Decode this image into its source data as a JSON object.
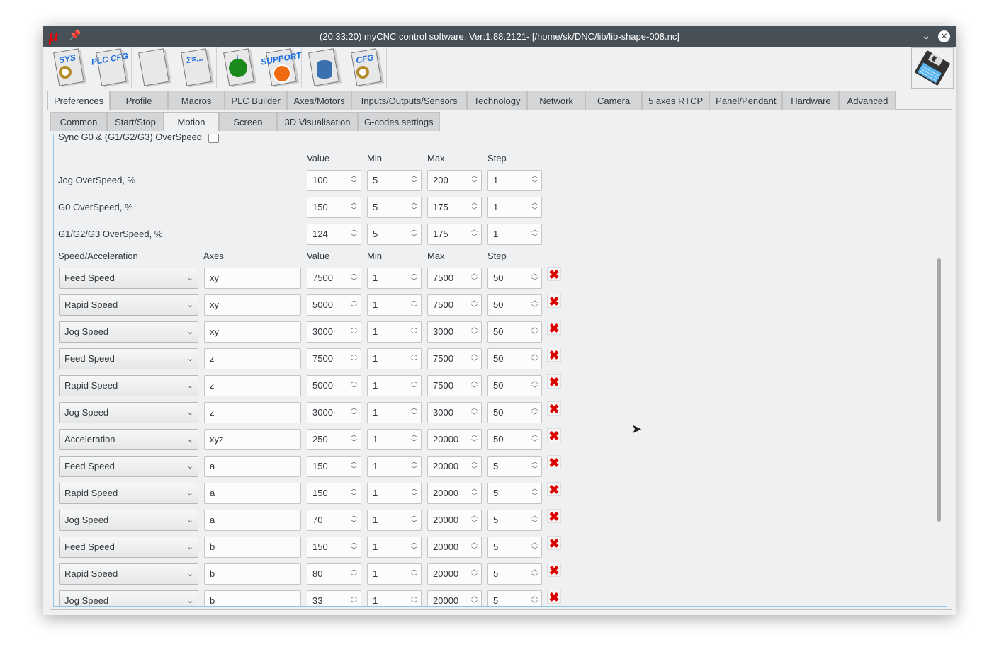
{
  "window": {
    "title": "(20:33:20) myCNC control software. Ver:1.88.2121- [/home/sk/DNC/lib/lib-shape-008.nc]",
    "logo": "μ"
  },
  "toolbar": [
    {
      "label": "SYS",
      "icon": "sys-gear-icon"
    },
    {
      "label": "PLC CFG",
      "icon": "plc-cfg-icon"
    },
    {
      "label": "",
      "icon": "text-doc-icon"
    },
    {
      "label": "Σ=...",
      "icon": "table-formula-icon"
    },
    {
      "label": "i",
      "icon": "info-icon"
    },
    {
      "label": "SUPPORT",
      "icon": "support-phone-icon"
    },
    {
      "label": "",
      "icon": "database-icon"
    },
    {
      "label": "CFG",
      "icon": "cfg-gear-icon"
    }
  ],
  "save_icon": "floppy-save-icon",
  "main_tabs": [
    "Preferences",
    "Profile",
    "Macros",
    "PLC Builder",
    "Axes/Motors",
    "Inputs/Outputs/Sensors",
    "Technology",
    "Network",
    "Camera",
    "5 axes RTCP",
    "Panel/Pendant",
    "Hardware",
    "Advanced"
  ],
  "sub_tabs": [
    "Common",
    "Start/Stop",
    "Motion",
    "Screen",
    "3D Visualisation",
    "G-codes settings"
  ],
  "sync_label": "Sync G0 & (G1/G2/G3) OverSpeed",
  "headers": {
    "value": "Value",
    "min": "Min",
    "max": "Max",
    "step": "Step",
    "speed": "Speed/Acceleration",
    "axes": "Axes"
  },
  "overspeed": [
    {
      "label": "Jog OverSpeed, %",
      "value": "100",
      "min": "5",
      "max": "200",
      "step": "1"
    },
    {
      "label": "G0 OverSpeed, %",
      "value": "150",
      "min": "5",
      "max": "175",
      "step": "1"
    },
    {
      "label": "G1/G2/G3 OverSpeed, %",
      "value": "124",
      "min": "5",
      "max": "175",
      "step": "1"
    }
  ],
  "speeds": [
    {
      "type": "Feed Speed",
      "axes": "xy",
      "value": "7500",
      "min": "1",
      "max": "7500",
      "step": "50"
    },
    {
      "type": "Rapid Speed",
      "axes": "xy",
      "value": "5000",
      "min": "1",
      "max": "7500",
      "step": "50"
    },
    {
      "type": "Jog Speed",
      "axes": "xy",
      "value": "3000",
      "min": "1",
      "max": "3000",
      "step": "50"
    },
    {
      "type": "Feed Speed",
      "axes": "z",
      "value": "7500",
      "min": "1",
      "max": "7500",
      "step": "50"
    },
    {
      "type": "Rapid Speed",
      "axes": "z",
      "value": "5000",
      "min": "1",
      "max": "7500",
      "step": "50"
    },
    {
      "type": "Jog Speed",
      "axes": "z",
      "value": "3000",
      "min": "1",
      "max": "3000",
      "step": "50"
    },
    {
      "type": "Acceleration",
      "axes": "xyz",
      "value": "250",
      "min": "1",
      "max": "20000",
      "step": "50"
    },
    {
      "type": "Feed Speed",
      "axes": "a",
      "value": "150",
      "min": "1",
      "max": "20000",
      "step": "5"
    },
    {
      "type": "Rapid Speed",
      "axes": "a",
      "value": "150",
      "min": "1",
      "max": "20000",
      "step": "5"
    },
    {
      "type": "Jog Speed",
      "axes": "a",
      "value": "70",
      "min": "1",
      "max": "20000",
      "step": "5"
    },
    {
      "type": "Feed Speed",
      "axes": "b",
      "value": "150",
      "min": "1",
      "max": "20000",
      "step": "5"
    },
    {
      "type": "Rapid Speed",
      "axes": "b",
      "value": "80",
      "min": "1",
      "max": "20000",
      "step": "5"
    },
    {
      "type": "Jog Speed",
      "axes": "b",
      "value": "33",
      "min": "1",
      "max": "20000",
      "step": "5"
    }
  ]
}
